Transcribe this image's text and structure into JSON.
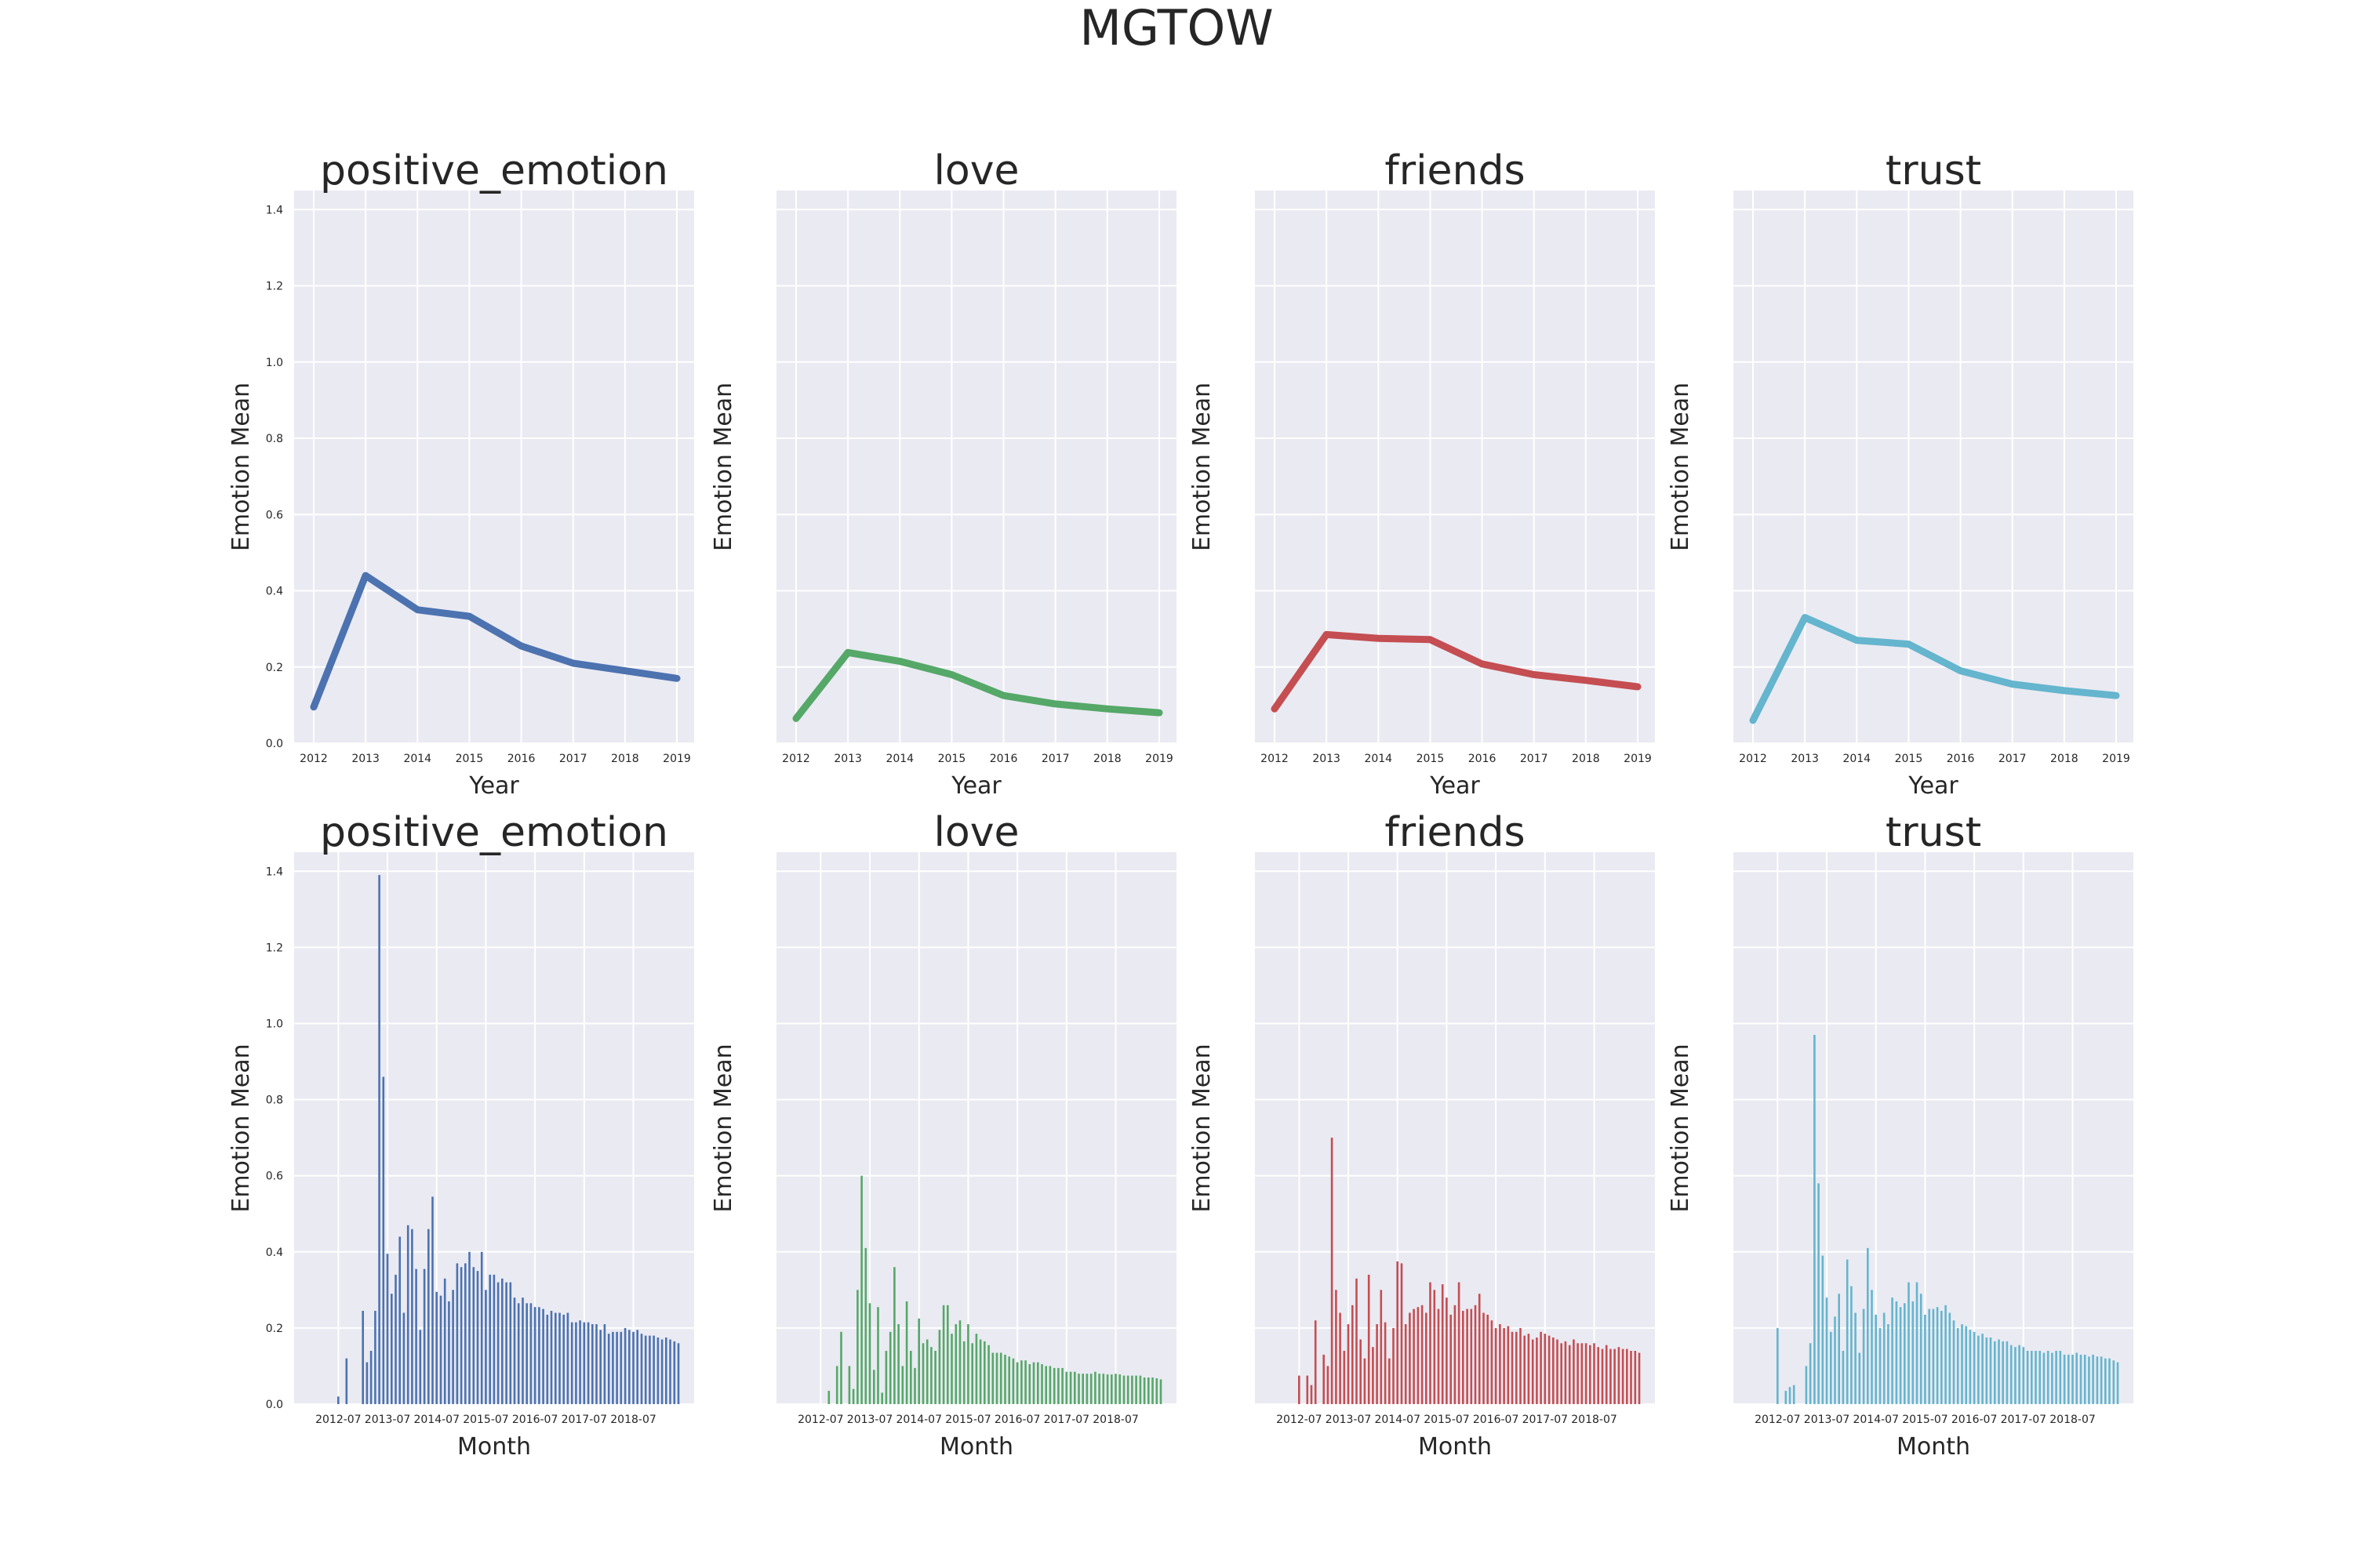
{
  "figure": {
    "title": "MGTOW"
  },
  "style": {
    "background": "#ffffff",
    "axes_face": "#eaeaf2",
    "grid": "#ffffff",
    "colors": [
      "#4c72b0",
      "#55a868",
      "#c44e52",
      "#64b5cd"
    ]
  },
  "chart_data": [
    {
      "type": "line",
      "title": "positive_emotion",
      "xlabel": "Year",
      "ylabel": "Emotion Mean",
      "x": [
        2012,
        2013,
        2014,
        2015,
        2016,
        2017,
        2018,
        2019
      ],
      "values": [
        0.095,
        0.44,
        0.35,
        0.333,
        0.255,
        0.21,
        0.19,
        0.17
      ],
      "ylim": [
        0,
        1.45
      ],
      "yticks": [
        "0.0",
        "0.2",
        "0.4",
        "0.6",
        "0.8",
        "1.0",
        "1.2",
        "1.4"
      ],
      "color": "#4c72b0",
      "grid": true
    },
    {
      "type": "line",
      "title": "love",
      "xlabel": "Year",
      "ylabel": "Emotion Mean",
      "x": [
        2012,
        2013,
        2014,
        2015,
        2016,
        2017,
        2018,
        2019
      ],
      "values": [
        0.065,
        0.238,
        0.215,
        0.18,
        0.125,
        0.103,
        0.09,
        0.08
      ],
      "ylim": [
        0,
        1.45
      ],
      "color": "#55a868",
      "grid": true
    },
    {
      "type": "line",
      "title": "friends",
      "xlabel": "Year",
      "ylabel": "Emotion Mean",
      "x": [
        2012,
        2013,
        2014,
        2015,
        2016,
        2017,
        2018,
        2019
      ],
      "values": [
        0.09,
        0.285,
        0.275,
        0.272,
        0.208,
        0.18,
        0.165,
        0.148
      ],
      "ylim": [
        0,
        1.45
      ],
      "color": "#c44e52",
      "grid": true
    },
    {
      "type": "line",
      "title": "trust",
      "xlabel": "Year",
      "ylabel": "Emotion Mean",
      "x": [
        2012,
        2013,
        2014,
        2015,
        2016,
        2017,
        2018,
        2019
      ],
      "values": [
        0.06,
        0.33,
        0.27,
        0.26,
        0.19,
        0.155,
        0.138,
        0.125
      ],
      "ylim": [
        0,
        1.45
      ],
      "color": "#64b5cd",
      "grid": true
    },
    {
      "type": "bar",
      "title": "positive_emotion",
      "xlabel": "Month",
      "ylabel": "Emotion Mean",
      "x_start": "2012-01",
      "xticks": [
        "2012-07",
        "2013-07",
        "2014-07",
        "2015-07",
        "2016-07",
        "2017-07",
        "2018-07"
      ],
      "values": [
        0,
        0,
        0,
        0,
        0,
        0,
        0.02,
        0,
        0.12,
        0,
        0,
        0,
        0.245,
        0.11,
        0.14,
        0.245,
        1.39,
        0.86,
        0.395,
        0.29,
        0.34,
        0.44,
        0.24,
        0.47,
        0.46,
        0.355,
        0.195,
        0.355,
        0.46,
        0.545,
        0.295,
        0.285,
        0.33,
        0.27,
        0.3,
        0.37,
        0.36,
        0.37,
        0.4,
        0.36,
        0.35,
        0.4,
        0.3,
        0.34,
        0.34,
        0.32,
        0.33,
        0.32,
        0.32,
        0.28,
        0.265,
        0.28,
        0.265,
        0.265,
        0.255,
        0.255,
        0.25,
        0.235,
        0.245,
        0.24,
        0.24,
        0.235,
        0.24,
        0.215,
        0.215,
        0.22,
        0.215,
        0.215,
        0.21,
        0.21,
        0.195,
        0.21,
        0.185,
        0.19,
        0.19,
        0.19,
        0.2,
        0.195,
        0.19,
        0.195,
        0.185,
        0.18,
        0.18,
        0.18,
        0.175,
        0.17,
        0.175,
        0.17,
        0.165,
        0.16
      ],
      "ylim": [
        0,
        1.45
      ],
      "yticks": [
        "0.0",
        "0.2",
        "0.4",
        "0.6",
        "0.8",
        "1.0",
        "1.2",
        "1.4"
      ],
      "color": "#4c72b0",
      "grid": true
    },
    {
      "type": "bar",
      "title": "love",
      "xlabel": "Month",
      "ylabel": "Emotion Mean",
      "x_start": "2012-01",
      "xticks": [
        "2012-07",
        "2013-07",
        "2014-07",
        "2015-07",
        "2016-07",
        "2017-07",
        "2018-07"
      ],
      "values": [
        0,
        0,
        0,
        0,
        0,
        0,
        0,
        0,
        0.035,
        0,
        0.1,
        0.19,
        0,
        0.1,
        0.04,
        0.3,
        0.6,
        0.41,
        0.265,
        0.09,
        0.255,
        0.03,
        0.14,
        0.19,
        0.36,
        0.21,
        0.1,
        0.27,
        0.14,
        0.095,
        0.225,
        0.16,
        0.17,
        0.15,
        0.14,
        0.195,
        0.26,
        0.26,
        0.185,
        0.21,
        0.22,
        0.165,
        0.21,
        0.16,
        0.185,
        0.17,
        0.165,
        0.155,
        0.135,
        0.135,
        0.135,
        0.13,
        0.125,
        0.12,
        0.11,
        0.115,
        0.115,
        0.105,
        0.11,
        0.11,
        0.105,
        0.1,
        0.1,
        0.095,
        0.095,
        0.095,
        0.085,
        0.085,
        0.085,
        0.08,
        0.08,
        0.08,
        0.08,
        0.085,
        0.08,
        0.08,
        0.078,
        0.078,
        0.08,
        0.078,
        0.075,
        0.075,
        0.075,
        0.075,
        0.075,
        0.07,
        0.07,
        0.07,
        0.068,
        0.065
      ],
      "ylim": [
        0,
        1.45
      ],
      "color": "#55a868",
      "grid": true
    },
    {
      "type": "bar",
      "title": "friends",
      "xlabel": "Month",
      "ylabel": "Emotion Mean",
      "x_start": "2012-01",
      "xticks": [
        "2012-07",
        "2013-07",
        "2014-07",
        "2015-07",
        "2016-07",
        "2017-07",
        "2018-07"
      ],
      "values": [
        0,
        0,
        0,
        0,
        0,
        0,
        0.075,
        0,
        0.075,
        0.05,
        0.22,
        0,
        0.13,
        0.1,
        0.7,
        0.3,
        0.24,
        0.14,
        0.21,
        0.26,
        0.33,
        0.17,
        0.12,
        0.34,
        0.15,
        0.21,
        0.3,
        0.215,
        0.12,
        0.2,
        0.375,
        0.37,
        0.21,
        0.24,
        0.25,
        0.255,
        0.26,
        0.24,
        0.32,
        0.3,
        0.25,
        0.315,
        0.28,
        0.235,
        0.26,
        0.32,
        0.245,
        0.25,
        0.25,
        0.26,
        0.29,
        0.24,
        0.235,
        0.22,
        0.2,
        0.21,
        0.2,
        0.205,
        0.19,
        0.19,
        0.2,
        0.18,
        0.185,
        0.17,
        0.175,
        0.19,
        0.185,
        0.18,
        0.175,
        0.17,
        0.16,
        0.165,
        0.155,
        0.17,
        0.16,
        0.16,
        0.16,
        0.155,
        0.16,
        0.15,
        0.145,
        0.155,
        0.145,
        0.145,
        0.15,
        0.145,
        0.145,
        0.14,
        0.14,
        0.135
      ],
      "ylim": [
        0,
        1.45
      ],
      "color": "#c44e52",
      "grid": true
    },
    {
      "type": "bar",
      "title": "trust",
      "xlabel": "Month",
      "ylabel": "Emotion Mean",
      "x_start": "2012-01",
      "xticks": [
        "2012-07",
        "2013-07",
        "2014-07",
        "2015-07",
        "2016-07",
        "2017-07",
        "2018-07"
      ],
      "values": [
        0,
        0,
        0,
        0,
        0,
        0,
        0.2,
        0,
        0.035,
        0.045,
        0.05,
        0,
        0,
        0.1,
        0.16,
        0.97,
        0.58,
        0.39,
        0.28,
        0.19,
        0.23,
        0.29,
        0.14,
        0.38,
        0.31,
        0.24,
        0.135,
        0.25,
        0.41,
        0.3,
        0.235,
        0.2,
        0.24,
        0.21,
        0.28,
        0.27,
        0.255,
        0.265,
        0.32,
        0.27,
        0.32,
        0.29,
        0.235,
        0.25,
        0.25,
        0.255,
        0.245,
        0.26,
        0.24,
        0.22,
        0.2,
        0.21,
        0.205,
        0.195,
        0.19,
        0.18,
        0.185,
        0.175,
        0.175,
        0.165,
        0.17,
        0.165,
        0.165,
        0.155,
        0.15,
        0.155,
        0.15,
        0.14,
        0.14,
        0.14,
        0.14,
        0.135,
        0.14,
        0.135,
        0.14,
        0.14,
        0.13,
        0.13,
        0.13,
        0.135,
        0.13,
        0.13,
        0.125,
        0.13,
        0.125,
        0.125,
        0.12,
        0.12,
        0.115,
        0.11
      ],
      "ylim": [
        0,
        1.45
      ],
      "color": "#64b5cd",
      "grid": true
    }
  ]
}
